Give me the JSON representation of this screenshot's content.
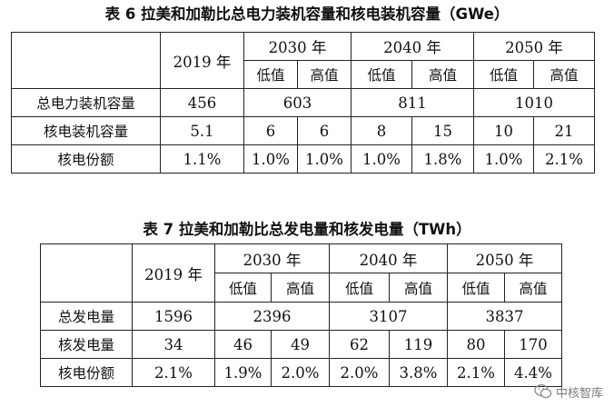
{
  "table6": {
    "caption": "表 6  拉美和加勒比总电力装机容量和核电装机容量（GWe）",
    "year_2019": "2019 年",
    "year_2030": "2030 年",
    "year_2040": "2040 年",
    "year_2050": "2050 年",
    "low": "低值",
    "high": "高值",
    "rows": [
      {
        "label": "总电力装机容量",
        "v2019": "456",
        "v2030": "603",
        "v2040": "811",
        "v2050": "1010"
      },
      {
        "label": "核电装机容量",
        "v2019": "5.1",
        "v2030_low": "6",
        "v2030_high": "6",
        "v2040_low": "8",
        "v2040_high": "15",
        "v2050_low": "10",
        "v2050_high": "21"
      },
      {
        "label": "核电份额",
        "v2019": "1.1%",
        "v2030_low": "1.0%",
        "v2030_high": "1.0%",
        "v2040_low": "1.0%",
        "v2040_high": "1.8%",
        "v2050_low": "1.0%",
        "v2050_high": "2.1%"
      }
    ]
  },
  "table7": {
    "caption": "表 7  拉美和加勒比总发电量和核发电量（TWh）",
    "year_2019": "2019 年",
    "year_2030": "2030 年",
    "year_2040": "2040 年",
    "year_2050": "2050 年",
    "low": "低值",
    "high": "高值",
    "rows": [
      {
        "label": "总发电量",
        "v2019": "1596",
        "v2030": "2396",
        "v2040": "3107",
        "v2050": "3837"
      },
      {
        "label": "核发电量",
        "v2019": "34",
        "v2030_low": "46",
        "v2030_high": "49",
        "v2040_low": "62",
        "v2040_high": "119",
        "v2050_low": "80",
        "v2050_high": "170"
      },
      {
        "label": "核电份额",
        "v2019": "2.1%",
        "v2030_low": "1.9%",
        "v2030_high": "2.0%",
        "v2040_low": "2.0%",
        "v2040_high": "3.8%",
        "v2050_low": "2.1%",
        "v2050_high": "4.4%"
      }
    ]
  },
  "watermark": {
    "text": "中核智库",
    "icon": "wechat-icon",
    "color": "#7a7a7a"
  }
}
